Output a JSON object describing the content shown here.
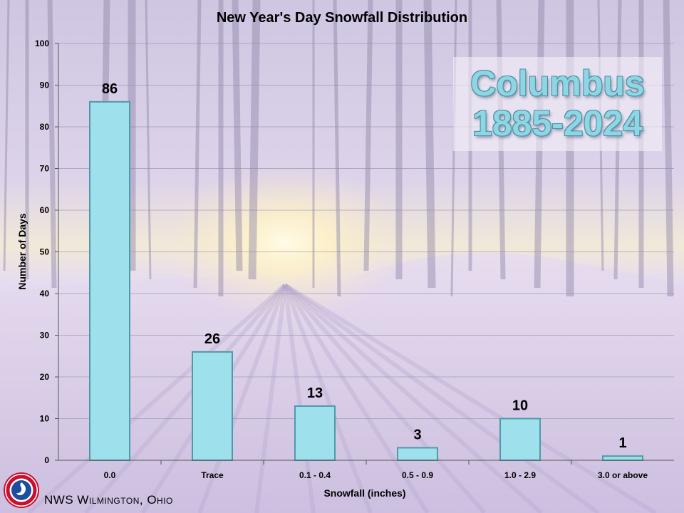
{
  "chart_data": {
    "type": "bar",
    "title": "New Year's Day Snowfall Distribution",
    "xlabel": "Snowfall (inches)",
    "ylabel": "Number of Days",
    "categories": [
      "0.0",
      "Trace",
      "0.1 - 0.4",
      "0.5 - 0.9",
      "1.0 - 2.9",
      "3.0 or above"
    ],
    "values": [
      86,
      26,
      13,
      3,
      10,
      1
    ],
    "ylim": [
      0,
      100
    ],
    "yticks": [
      0,
      10,
      20,
      30,
      40,
      50,
      60,
      70,
      80,
      90,
      100
    ],
    "grid": true,
    "data_labels": true,
    "bar_color": "#9ee0ec",
    "bar_edge_color": "#4f9aa8"
  },
  "station": {
    "name": "Columbus",
    "years": "1885-2024"
  },
  "office": "NWS Wilmington, Ohio",
  "logo_icon": "nws-seal-icon",
  "background": "snowy-forest-sunrise"
}
